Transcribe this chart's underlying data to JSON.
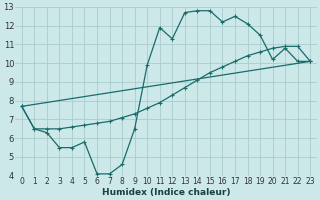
{
  "xlabel": "Humidex (Indice chaleur)",
  "bg_color": "#cce8e8",
  "grid_color": "#aacccc",
  "line_color": "#1a6b6b",
  "xlim": [
    -0.5,
    23.5
  ],
  "ylim": [
    4,
    13
  ],
  "xticks": [
    0,
    1,
    2,
    3,
    4,
    5,
    6,
    7,
    8,
    9,
    10,
    11,
    12,
    13,
    14,
    15,
    16,
    17,
    18,
    19,
    20,
    21,
    22,
    23
  ],
  "yticks": [
    4,
    5,
    6,
    7,
    8,
    9,
    10,
    11,
    12,
    13
  ],
  "line1_x": [
    0,
    1,
    2,
    3,
    4,
    5,
    6,
    7,
    8,
    9,
    10,
    11,
    12,
    13,
    14,
    15,
    16,
    17,
    18,
    19,
    20,
    21,
    22,
    23
  ],
  "line1_y": [
    7.7,
    6.5,
    6.3,
    5.5,
    5.5,
    5.8,
    4.1,
    4.1,
    4.6,
    6.5,
    9.9,
    11.9,
    11.3,
    12.7,
    12.8,
    12.8,
    12.2,
    12.5,
    12.1,
    11.5,
    10.2,
    10.8,
    10.1,
    10.1
  ],
  "line2_x": [
    0,
    1,
    2,
    3,
    4,
    5,
    6,
    7,
    8,
    9,
    10,
    11,
    12,
    13,
    14,
    15,
    16,
    17,
    18,
    19,
    20,
    21,
    22,
    23
  ],
  "line2_y": [
    7.7,
    6.5,
    6.5,
    6.5,
    6.6,
    6.7,
    6.8,
    6.9,
    7.1,
    7.3,
    7.6,
    7.9,
    8.3,
    8.7,
    9.1,
    9.5,
    9.8,
    10.1,
    10.4,
    10.6,
    10.8,
    10.9,
    10.9,
    10.1
  ],
  "line3_x": [
    0,
    23
  ],
  "line3_y": [
    7.7,
    10.1
  ]
}
